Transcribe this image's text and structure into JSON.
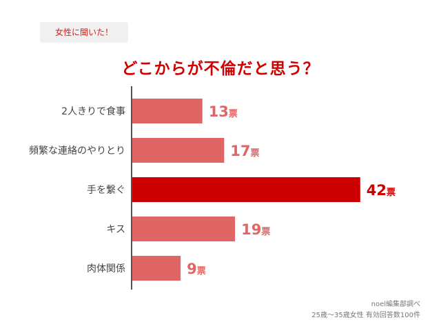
{
  "header": {
    "tag": "女性に聞いた！",
    "title": "どこからが不倫だと思う？"
  },
  "footer": {
    "source": "noel編集部調べ",
    "sample": "25歳〜35歳女性 有効回答数100件"
  },
  "chart_data": {
    "type": "bar",
    "orientation": "horizontal",
    "categories": [
      "2人きりで食事",
      "頻繁な連絡のやりとり",
      "手を繋ぐ",
      "キス",
      "肉体関係"
    ],
    "values": [
      13,
      17,
      42,
      19,
      9
    ],
    "unit": "票",
    "highlight_index": 2,
    "colors": {
      "bar": "#e06666",
      "highlight": "#cc0000",
      "axis": "#555555"
    }
  }
}
